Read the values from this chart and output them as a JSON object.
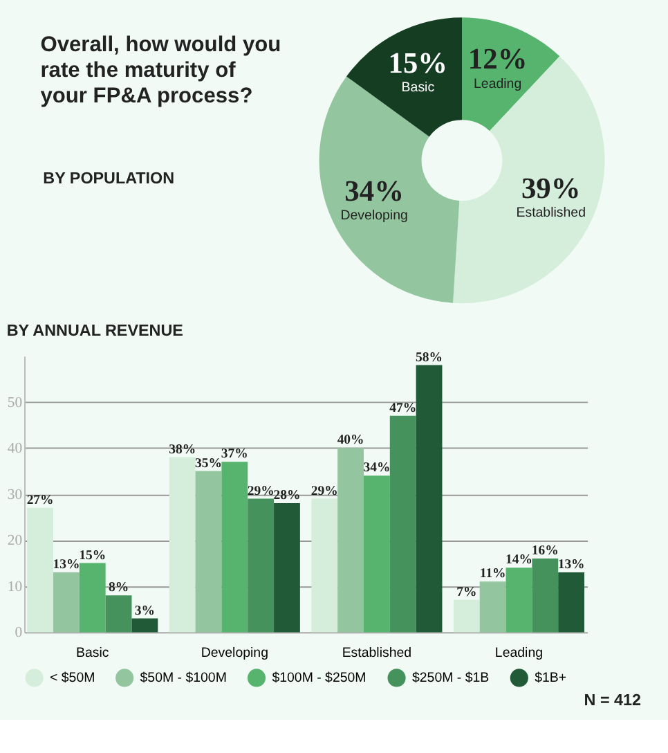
{
  "chart_data": [
    {
      "type": "donut",
      "title": "Overall, how would you rate the maturity of your FP&A process?",
      "subtitle": "BY POPULATION",
      "categories": [
        "Leading",
        "Established",
        "Developing",
        "Basic"
      ],
      "values": [
        12,
        39,
        34,
        15
      ],
      "colors": [
        "#57b46f",
        "#d4eedb",
        "#93c59f",
        "#143d22"
      ],
      "value_labels": [
        "12%",
        "39%",
        "34%",
        "15%"
      ]
    },
    {
      "type": "bar",
      "title": "BY ANNUAL REVENUE",
      "categories": [
        "Basic",
        "Developing",
        "Established",
        "Leading"
      ],
      "ylim": [
        0,
        60
      ],
      "yticks": [
        0,
        10,
        20,
        30,
        40,
        50
      ],
      "grid": "y",
      "legend": "bottom",
      "annotations": [
        "N = 412"
      ],
      "series": [
        {
          "name": "< $50M",
          "color": "#d4eedb",
          "values": [
            27,
            38,
            29,
            7
          ],
          "value_labels": [
            "27%",
            "38%",
            "29%",
            "7%"
          ]
        },
        {
          "name": "$50M - $100M",
          "color": "#93c59f",
          "values": [
            13,
            35,
            40,
            11
          ],
          "value_labels": [
            "13%",
            "35%",
            "40%",
            "11%"
          ]
        },
        {
          "name": "$100M - $250M",
          "color": "#57b46f",
          "values": [
            15,
            37,
            34,
            14
          ],
          "value_labels": [
            "15%",
            "37%",
            "34%",
            "14%"
          ]
        },
        {
          "name": "$250M - $1B",
          "color": "#46925d",
          "values": [
            8,
            29,
            47,
            16
          ],
          "value_labels": [
            "8%",
            "29%",
            "47%",
            "16%"
          ]
        },
        {
          "name": "$1B+",
          "color": "#215a36",
          "values": [
            3,
            28,
            58,
            13
          ],
          "value_labels": [
            "3%",
            "28%",
            "58%",
            "13%"
          ]
        }
      ]
    }
  ]
}
